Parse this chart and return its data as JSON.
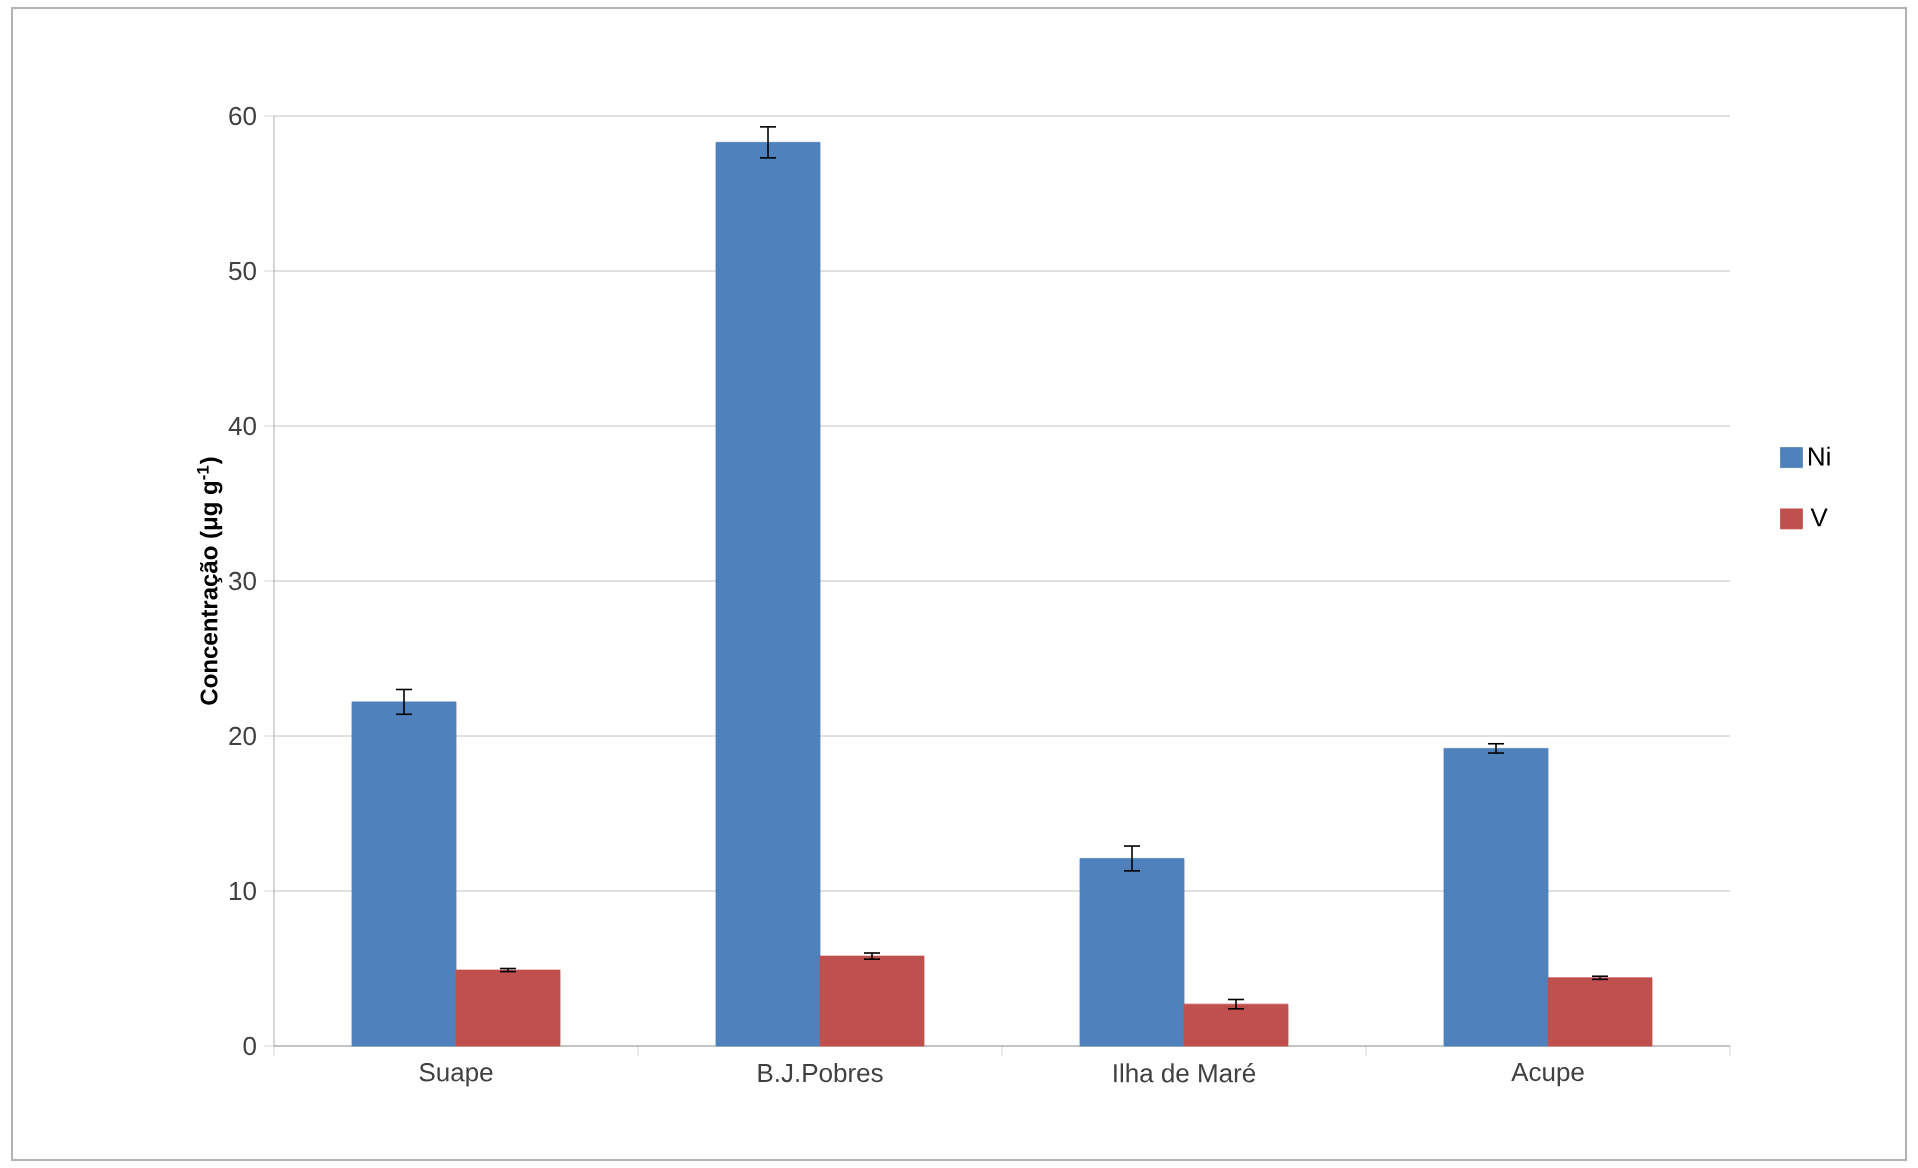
{
  "chart_data": {
    "type": "bar",
    "ylabel": "**Concentração (μg g$^{-1}$)**",
    "categories": [
      "Suape",
      "B.J.Pobres",
      "Ilha de Maré",
      "Acupe"
    ],
    "series": [
      {
        "name": "Ni",
        "color": "#4f81bd",
        "values": [
          22.2,
          58.3,
          12.1,
          19.2
        ],
        "errors": [
          0.8,
          1.0,
          0.8,
          0.3
        ]
      },
      {
        "name": "V",
        "color": "#c0504d",
        "values": [
          4.9,
          5.8,
          2.7,
          4.4
        ],
        "errors": [
          0.1,
          0.2,
          0.3,
          0.1
        ]
      }
    ],
    "ylim": [
      0,
      60
    ],
    "yticks": [
      0,
      10,
      20,
      30,
      40,
      50,
      60
    ],
    "grid": "y",
    "legend": "right"
  }
}
